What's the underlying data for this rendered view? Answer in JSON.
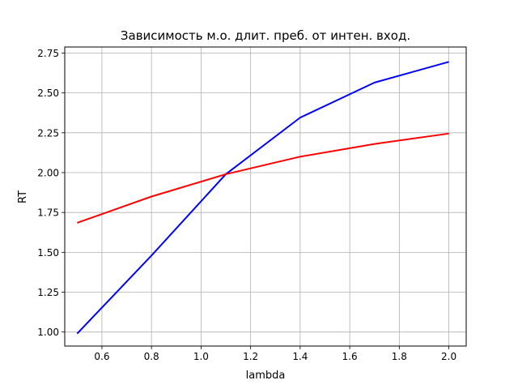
{
  "chart_data": {
    "type": "line",
    "title": "Зависимость м.о. длит. преб. от интен. вход.",
    "xlabel": "lambda",
    "ylabel": "RT",
    "xlim": [
      0.45,
      2.07
    ],
    "ylim": [
      0.912,
      2.788
    ],
    "xticks": [
      0.6,
      0.8,
      1.0,
      1.2,
      1.4,
      1.6,
      1.8,
      2.0
    ],
    "xtick_labels": [
      "0.6",
      "0.8",
      "1.0",
      "1.2",
      "1.4",
      "1.6",
      "1.8",
      "2.0"
    ],
    "yticks": [
      1.0,
      1.25,
      1.5,
      1.75,
      2.0,
      2.25,
      2.5,
      2.75
    ],
    "ytick_labels": [
      "1.00",
      "1.25",
      "1.50",
      "1.75",
      "2.00",
      "2.25",
      "2.50",
      "2.75"
    ],
    "grid": true,
    "legend": false,
    "series": [
      {
        "color": "#0000ff",
        "x": [
          0.5,
          0.8,
          1.1,
          1.4,
          1.7,
          2.0
        ],
        "y": [
          0.99,
          1.48,
          1.99,
          2.345,
          2.565,
          2.695
        ]
      },
      {
        "color": "#ff0000",
        "x": [
          0.5,
          0.8,
          1.1,
          1.4,
          1.7,
          2.0
        ],
        "y": [
          1.685,
          1.85,
          1.99,
          2.1,
          2.18,
          2.245
        ]
      }
    ]
  }
}
